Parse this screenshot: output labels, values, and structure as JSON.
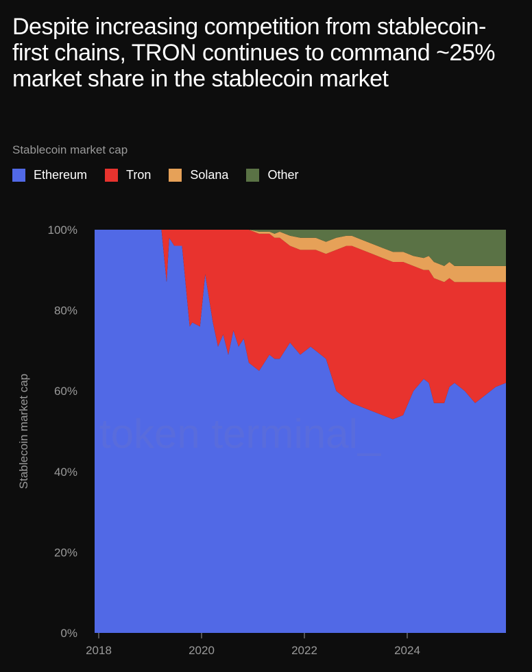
{
  "title": "Despite increasing competition from stablecoin-first chains, TRON continues to command ~25% market share in the stablecoin market",
  "subtitle": "Stablecoin market cap",
  "watermark": "token terminal_",
  "chart_data": {
    "type": "area",
    "stacked": true,
    "normalized": true,
    "ylabel": "Stablecoin market cap",
    "xlabel": "",
    "xlim": [
      2018,
      2026
    ],
    "ylim": [
      0,
      100
    ],
    "yticks": [
      0,
      20,
      40,
      60,
      80,
      100
    ],
    "ytick_labels": [
      "0%",
      "20%",
      "40%",
      "60%",
      "80%",
      "100%"
    ],
    "xticks": [
      2018,
      2020,
      2022,
      2024
    ],
    "xtick_labels": [
      "2018",
      "2020",
      "2022",
      "2024"
    ],
    "x": [
      2018.0,
      2019.3,
      2019.4,
      2019.45,
      2019.55,
      2019.7,
      2019.85,
      2019.9,
      2020.05,
      2020.15,
      2020.3,
      2020.4,
      2020.5,
      2020.6,
      2020.7,
      2020.8,
      2020.9,
      2021.0,
      2021.2,
      2021.4,
      2021.5,
      2021.6,
      2021.8,
      2022.0,
      2022.2,
      2022.3,
      2022.5,
      2022.7,
      2022.9,
      2023.0,
      2023.2,
      2023.4,
      2023.6,
      2023.8,
      2024.0,
      2024.2,
      2024.4,
      2024.5,
      2024.6,
      2024.8,
      2024.9,
      2025.0,
      2025.2,
      2025.4,
      2025.6,
      2025.8,
      2026.0
    ],
    "series": [
      {
        "name": "Ethereum",
        "color": "#5169e6",
        "values": [
          100,
          100,
          87,
          98,
          96,
          96,
          76,
          77,
          76,
          89,
          77,
          71,
          74,
          69,
          75,
          71,
          73,
          67,
          65,
          69,
          68,
          68,
          72,
          69,
          71,
          70,
          68,
          60,
          58,
          57,
          56,
          55,
          54,
          53,
          54,
          60,
          63,
          62,
          57,
          57,
          61,
          62,
          60,
          57,
          59,
          61,
          62
        ]
      },
      {
        "name": "Tron",
        "color": "#e8332e",
        "values": [
          0,
          0,
          13,
          2,
          4,
          4,
          24,
          23,
          24,
          11,
          23,
          29,
          26,
          31,
          25,
          29,
          27,
          33,
          34,
          30,
          30,
          30,
          24,
          26,
          24,
          25,
          26,
          35,
          38,
          39,
          39,
          39,
          39,
          39,
          38,
          31,
          27,
          28,
          31,
          30,
          27,
          25,
          27,
          30,
          28,
          26,
          25
        ]
      },
      {
        "name": "Solana",
        "color": "#e6a158",
        "values": [
          0,
          0,
          0,
          0,
          0,
          0,
          0,
          0,
          0,
          0,
          0,
          0,
          0,
          0,
          0,
          0,
          0,
          0,
          0.5,
          0.5,
          1,
          1.5,
          2.5,
          3,
          3,
          3,
          3,
          3,
          2.5,
          2.5,
          2.5,
          2.5,
          2.5,
          2.5,
          2.5,
          2.5,
          3,
          3.5,
          4,
          4,
          4,
          4,
          4,
          4,
          4,
          4,
          4
        ]
      },
      {
        "name": "Other",
        "color": "#5a7245",
        "values": [
          0,
          0,
          0,
          0,
          0,
          0,
          0,
          0,
          0,
          0,
          0,
          0,
          0,
          0,
          0,
          0,
          0,
          0,
          0.5,
          0.5,
          1,
          0.5,
          1.5,
          2,
          2,
          2,
          3,
          2,
          1.5,
          1.5,
          2.5,
          3.5,
          4.5,
          5.5,
          5.5,
          6.5,
          7,
          6.5,
          8,
          9,
          8,
          9,
          9,
          9,
          9,
          9,
          9
        ]
      }
    ]
  }
}
